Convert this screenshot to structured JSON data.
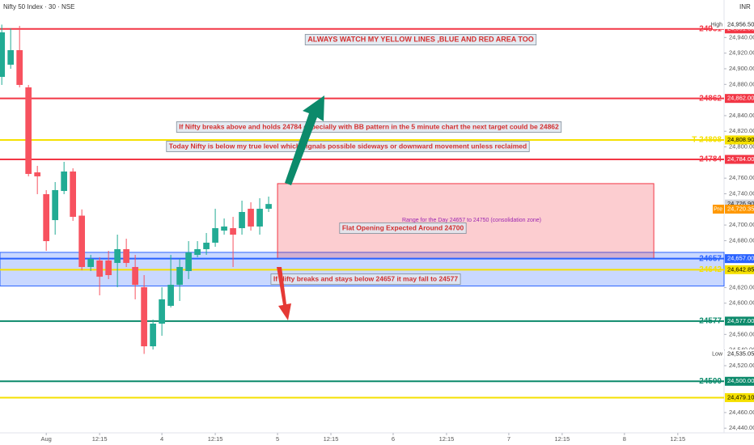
{
  "chart_data": {
    "type": "candlestick",
    "title": "Nifty 50 Index · 30 · NSE",
    "currency": "INR",
    "up_color": "#22ab94",
    "down_color": "#f7525f",
    "xlim": [
      -0.2,
      81.2
    ],
    "xticks": [
      {
        "value": 5,
        "label": "Aug"
      },
      {
        "value": 11,
        "label": "12:15"
      },
      {
        "value": 18,
        "label": "4"
      },
      {
        "value": 24,
        "label": "12:15"
      },
      {
        "value": 31,
        "label": "5"
      },
      {
        "value": 37,
        "label": "12:15"
      },
      {
        "value": 44,
        "label": "6"
      },
      {
        "value": 50,
        "label": "12:15"
      },
      {
        "value": 57,
        "label": "7"
      },
      {
        "value": 63,
        "label": "12:15"
      },
      {
        "value": 70,
        "label": "8"
      },
      {
        "value": 76,
        "label": "12:15"
      }
    ],
    "ylim": [
      24434,
      24988
    ],
    "yticks": [
      {
        "value": 24940,
        "label": "24,940.00"
      },
      {
        "value": 24920,
        "label": "24,920.00"
      },
      {
        "value": 24900,
        "label": "24,900.00"
      },
      {
        "value": 24880,
        "label": "24,880.00"
      },
      {
        "value": 24840,
        "label": "24,840.00"
      },
      {
        "value": 24820,
        "label": "24,820.00"
      },
      {
        "value": 24800,
        "label": "24,800.00"
      },
      {
        "value": 24760,
        "label": "24,760.00"
      },
      {
        "value": 24740,
        "label": "24,740.00"
      },
      {
        "value": 24700,
        "label": "24,700.00"
      },
      {
        "value": 24680,
        "label": "24,680.00"
      },
      {
        "value": 24620,
        "label": "24,620.00"
      },
      {
        "value": 24600,
        "label": "24,600.00"
      },
      {
        "value": 24560,
        "label": "24,560.00"
      },
      {
        "value": 24540,
        "label": "24,540.00"
      },
      {
        "value": 24520,
        "label": "24,520.00"
      },
      {
        "value": 24460,
        "label": "24,460.00"
      },
      {
        "value": 24440,
        "label": "24,440.00"
      }
    ],
    "open": [
      24889.6,
      24905.2,
      24923.8,
      24876.2,
      24767.4,
      24739.5,
      24706.3,
      24743.6,
      24768.5,
      24712,
      24646.3,
      24654.6,
      24654.6,
      24651.5,
      24669.1,
      24646.3,
      24620.4,
      24544.8,
      24573.8,
      24596.6,
      24623.5,
      24641.1,
      24661.8,
      24669.1,
      24677.4,
      24692.9,
      24696.0,
      24696.0,
      24720.8,
      24698.1,
      24720.8
    ],
    "high": [
      24956.5,
      24951.8,
      24954.9,
      24879.3,
      24775.7,
      24744.7,
      24755.0,
      24780.9,
      24772.6,
      24720,
      24661.8,
      24658.7,
      24667.0,
      24687.7,
      24682.5,
      24661.8,
      24635.9,
      24579.0,
      24620.4,
      24661.8,
      24656.6,
      24679.4,
      24679.4,
      24689.8,
      24720.8,
      24708.4,
      24710.5,
      24731.2,
      24729.1,
      24734.3,
      24736.4
    ],
    "low": [
      24879.3,
      24900.0,
      24876.2,
      24762.3,
      24739.5,
      24667.0,
      24687.7,
      24739.5,
      24705.3,
      24642,
      24641.1,
      24610.0,
      24630.8,
      24620.4,
      24646.3,
      24604.9,
      24535.05,
      24540.7,
      24558.3,
      24594.5,
      24602.8,
      24630.8,
      24658.7,
      24661.8,
      24672.2,
      24687.7,
      24646.3,
      24687.7,
      24692.9,
      24687.7,
      24716.7
    ],
    "close": [
      24946.6,
      24923.8,
      24879.3,
      24765.4,
      24762.3,
      24679.4,
      24744.7,
      24768.5,
      24710.5,
      24646.3,
      24656.6,
      24633.9,
      24635.9,
      24669.1,
      24651.5,
      24623.5,
      24544.8,
      24573.8,
      24604.9,
      24623.5,
      24646.3,
      24664.9,
      24669.1,
      24677.4,
      24696.0,
      24698.1,
      24687.7,
      24716.7,
      24698.1,
      24720.8,
      24726.9
    ],
    "zones": [
      {
        "y": [
          24665,
          24622
        ],
        "color": "#2962ff"
      },
      {
        "x": [
          31,
          73.3
        ],
        "y": [
          24753,
          24657
        ],
        "color": "#f23645"
      }
    ],
    "levels": [
      {
        "value": 24951,
        "tag": "24951",
        "label": "24,951.00",
        "color": "#f23645"
      },
      {
        "value": 24862,
        "tag": "24862",
        "label": "24,862.00",
        "color": "#f23645"
      },
      {
        "value": 24808.9,
        "tag": "T 24808",
        "label": "24,808.90",
        "color": "#f5e000"
      },
      {
        "value": 24784,
        "tag": "24784",
        "label": "24,784.00",
        "color": "#f23645"
      },
      {
        "value": 24657,
        "tag": "24657",
        "label": "24,657.00",
        "color": "#2962ff"
      },
      {
        "value": 24642.85,
        "tag": "24642",
        "label": "24,642.85",
        "color": "#f5e000"
      },
      {
        "value": 24577,
        "tag": "24577",
        "label": "24,577.00",
        "color": "#0c8a6b"
      },
      {
        "value": 24500,
        "tag": "24500",
        "label": "24,500.00",
        "color": "#0c8a6b"
      },
      {
        "value": 24479.1,
        "label": "24,479.10",
        "color": "#f5e000"
      }
    ],
    "markers": [
      {
        "tag": "High",
        "value": 24956.5,
        "label": "24,956.50",
        "color": "#ffffff"
      },
      {
        "value": 24726.9,
        "label": "24,726.90",
        "color": "#d1d4dc"
      },
      {
        "tag": "Pre",
        "value": 24720.35,
        "label": "24,720.35",
        "color": "#ff9800"
      },
      {
        "tag": "Low",
        "value": 24535.05,
        "label": "24,535.05",
        "color": "#ffffff"
      }
    ],
    "annotations": [
      {
        "text": "ALWAYS WATCH MY YELLOW LINES ,BLUE AND RED AREA TOO",
        "color": "#d32f2f"
      },
      {
        "text": "If Nifty breaks above and holds 24784 especially with BB pattern in the 5 minute chart the next target could be 24862",
        "color": "#d32f2f"
      },
      {
        "text": "Today Nifty is below my true  level which signals possible sideways or downward movement unless reclaimed",
        "color": "#d32f2f"
      },
      {
        "text": "Range for the Day 24657 to 24750 (consolidation zone)",
        "color": "#9c27b0"
      },
      {
        "text": "Flat Opening Expected Around 24700",
        "color": "#d32f2f"
      },
      {
        "text": "If Nifty breaks and stays below 24657 it may fall to 24577",
        "color": "#d32f2f"
      }
    ]
  }
}
